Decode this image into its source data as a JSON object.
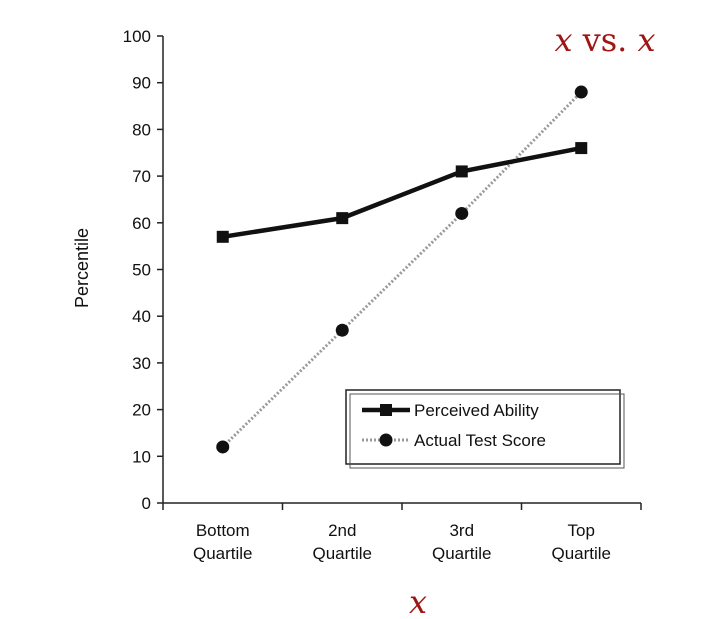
{
  "overlay": {
    "title_var_a": "x",
    "title_vs": " vs. ",
    "title_var_b": "x",
    "xlabel_var": "x",
    "color": "#a01414"
  },
  "chart_data": {
    "type": "line",
    "title": "x vs. x",
    "xlabel": "x",
    "ylabel": "Percentile",
    "ylim": [
      0,
      100
    ],
    "yticks": [
      0,
      10,
      20,
      30,
      40,
      50,
      60,
      70,
      80,
      90,
      100
    ],
    "categories": [
      [
        "Bottom",
        "Quartile"
      ],
      [
        "2nd",
        "Quartile"
      ],
      [
        "3rd",
        "Quartile"
      ],
      [
        "Top",
        "Quartile"
      ]
    ],
    "series": [
      {
        "name": "Perceived Ability",
        "values": [
          57,
          61,
          71,
          76
        ],
        "marker": "square",
        "line": "solid",
        "color": "#111111"
      },
      {
        "name": "Actual Test Score",
        "values": [
          12,
          37,
          62,
          88
        ],
        "marker": "circle",
        "line": "dotted",
        "color": "#9a9a9a"
      }
    ],
    "legend_position": "bottom-right",
    "grid": false
  }
}
